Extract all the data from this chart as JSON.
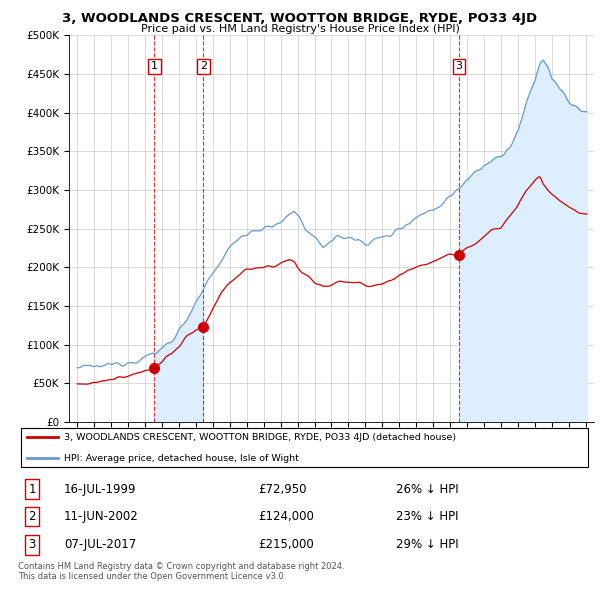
{
  "title": "3, WOODLANDS CRESCENT, WOOTTON BRIDGE, RYDE, PO33 4JD",
  "subtitle": "Price paid vs. HM Land Registry's House Price Index (HPI)",
  "hpi_label": "HPI: Average price, detached house, Isle of Wight",
  "property_label": "3, WOODLANDS CRESCENT, WOOTTON BRIDGE, RYDE, PO33 4JD (detached house)",
  "transactions": [
    {
      "num": 1,
      "date": "16-JUL-1999",
      "price": 72950,
      "year": 1999.54,
      "hpi_diff": "26% ↓ HPI"
    },
    {
      "num": 2,
      "date": "11-JUN-2002",
      "price": 124000,
      "year": 2002.44,
      "hpi_diff": "23% ↓ HPI"
    },
    {
      "num": 3,
      "date": "07-JUL-2017",
      "price": 215000,
      "year": 2017.52,
      "hpi_diff": "29% ↓ HPI"
    }
  ],
  "copyright": "Contains HM Land Registry data © Crown copyright and database right 2024.\nThis data is licensed under the Open Government Licence v3.0.",
  "ylim": [
    0,
    500000
  ],
  "xlim_start": 1994.5,
  "xlim_end": 2025.5,
  "yticks": [
    0,
    50000,
    100000,
    150000,
    200000,
    250000,
    300000,
    350000,
    400000,
    450000,
    500000
  ],
  "xticks": [
    1995,
    1996,
    1997,
    1998,
    1999,
    2000,
    2001,
    2002,
    2003,
    2004,
    2005,
    2006,
    2007,
    2008,
    2009,
    2010,
    2011,
    2012,
    2013,
    2014,
    2015,
    2016,
    2017,
    2018,
    2019,
    2020,
    2021,
    2022,
    2023,
    2024,
    2025
  ],
  "hpi_color": "#6699cc",
  "hpi_fill_color": "#ddeeff",
  "price_color": "#cc0000",
  "transaction_box_color": "#cc0000",
  "background_color": "#ffffff",
  "grid_color": "#cccccc"
}
